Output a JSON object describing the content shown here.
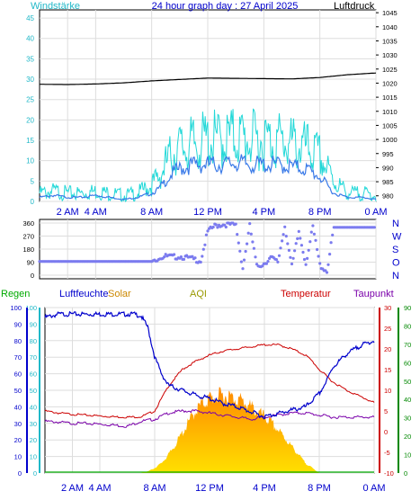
{
  "header": {
    "title": "24 hour graph day : 27 April 2025",
    "left_label": "Windstärke",
    "right_label": "Luftdruck"
  },
  "bottom_header": {
    "regen": "Regen",
    "luftfeuchte": "Luftfeuchte",
    "solar": "Solar",
    "aqi": "AQI",
    "temperatur": "Temperatur",
    "taupunkt": "Taupunkt"
  },
  "x_ticks": [
    "2 AM",
    "4 AM",
    "8 AM",
    "12 PM",
    "4 PM",
    "8 PM",
    "0 AM"
  ],
  "x_tick_hours": [
    2,
    4,
    8,
    12,
    16,
    20,
    24
  ],
  "colors": {
    "wind_gust": "#22d8d8",
    "wind_avg": "#3a7ae8",
    "pressure": "#000000",
    "direction": "#7b7bef",
    "humidity": "#0000cc",
    "solar_top": "#ff8800",
    "solar_bottom": "#ffe000",
    "temperature": "#cc0000",
    "dewpoint": "#7a00aa",
    "regen": "#00aa00",
    "axis_cyan": "#20b8c8",
    "axis_red": "#cc0000",
    "axis_green": "#008800"
  },
  "chart_data": [
    {
      "type": "line",
      "title": "24 hour graph day : 27 April 2025",
      "y_left_label": "Windstärke",
      "y_right_label": "Luftdruck",
      "y_left_ticks": [
        "0",
        "5",
        "10",
        "15",
        "20",
        "25",
        "30",
        "35",
        "40",
        "45"
      ],
      "y_right_ticks": [
        "980",
        "985",
        "990",
        "995",
        "1000",
        "1005",
        "1010",
        "1015",
        "1020",
        "1025",
        "1030",
        "1035",
        "1040",
        "1045"
      ],
      "ylim_left": [
        0,
        47
      ],
      "ylim_right": [
        978,
        1046
      ],
      "xlim": [
        0,
        24
      ],
      "series": [
        {
          "name": "Luftdruck",
          "x": [
            0,
            2,
            4,
            6,
            8,
            10,
            12,
            14,
            16,
            18,
            20,
            22,
            24
          ],
          "values": [
            1019.6,
            1019.5,
            1019.7,
            1020.1,
            1020.8,
            1021.3,
            1021.8,
            1021.7,
            1021.6,
            1021.5,
            1022.0,
            1023.0,
            1023.6
          ]
        },
        {
          "name": "Windstärke",
          "x": [
            0,
            1,
            2,
            3,
            4,
            5,
            6,
            7,
            7.5,
            8,
            8.5,
            9,
            9.5,
            10,
            11,
            12,
            13,
            14,
            15,
            16,
            17,
            18,
            19,
            20,
            20.5,
            21,
            22,
            23,
            24
          ],
          "values": [
            1,
            1.5,
            1,
            1,
            1.5,
            1,
            0.5,
            1,
            1.5,
            2,
            3,
            5,
            7,
            8,
            9,
            9,
            9,
            9.5,
            9,
            9,
            9,
            8.5,
            8,
            6,
            4,
            2,
            1,
            1,
            0.5
          ]
        },
        {
          "name": "gust",
          "x": [
            0,
            1,
            2,
            3,
            4,
            5,
            6,
            7,
            7.5,
            8,
            8.5,
            9,
            9.5,
            10,
            11,
            12,
            13,
            14,
            15,
            16,
            17,
            18,
            19,
            20,
            20.5,
            21,
            22,
            23,
            24
          ],
          "values": [
            2,
            2.5,
            2,
            2,
            2.5,
            2,
            1.5,
            2,
            3,
            4,
            6,
            9,
            12,
            13,
            14,
            15,
            15,
            16,
            15,
            15,
            15,
            14,
            13,
            11,
            8,
            5,
            2,
            2,
            1.5
          ]
        }
      ]
    },
    {
      "type": "scatter",
      "y_right_ticks": [
        "360",
        "270",
        "180",
        "90",
        "0"
      ],
      "y_labels_letters": [
        "N",
        "W",
        "S",
        "O",
        "N"
      ],
      "ylim": [
        0,
        360
      ],
      "xlim": [
        0,
        24
      ],
      "series": [
        {
          "name": "direction",
          "x": [
            0,
            1,
            2,
            3,
            4,
            5,
            6,
            7,
            8,
            8.5,
            9,
            9.5,
            10,
            10.5,
            11,
            11.5,
            12,
            12.5,
            13,
            13.5,
            14,
            14.5,
            15,
            15.5,
            16,
            16.5,
            17,
            17.5,
            18,
            18.5,
            19,
            19.5,
            20,
            20.5,
            21,
            22,
            23,
            24
          ],
          "values": [
            95,
            95,
            95,
            95,
            95,
            95,
            95,
            95,
            95,
            120,
            130,
            125,
            130,
            120,
            110,
            100,
            300,
            340,
            350,
            350,
            345,
            50,
            340,
            60,
            80,
            120,
            90,
            340,
            60,
            300,
            80,
            330,
            70,
            25,
            330,
            330,
            330,
            330
          ]
        }
      ]
    },
    {
      "type": "line",
      "left_axis_ticks": [
        "0",
        "10",
        "20",
        "30",
        "40",
        "50",
        "60",
        "70",
        "80",
        "90",
        "100"
      ],
      "ylim_left": [
        0,
        100
      ],
      "right_temp_ticks": [
        "-10",
        "-5",
        "0",
        "5",
        "10",
        "15",
        "20",
        "25",
        "30"
      ],
      "ylim_temp": [
        -10,
        30
      ],
      "right_solar_ticks": [
        "0",
        "10",
        "20",
        "30",
        "40",
        "50",
        "60",
        "70",
        "80",
        "90"
      ],
      "xlim": [
        0,
        24
      ],
      "series": [
        {
          "name": "Luftfeuchte",
          "x": [
            0,
            1,
            2,
            3,
            4,
            5,
            6,
            6.5,
            7,
            7.5,
            8,
            8.5,
            9,
            10,
            11,
            12,
            13,
            14,
            15,
            16,
            17,
            18,
            19,
            20,
            20.5,
            21,
            22,
            23,
            24
          ],
          "values": [
            94,
            96,
            96,
            96,
            96,
            96,
            96,
            96,
            95,
            88,
            70,
            60,
            53,
            50,
            47,
            45,
            42,
            40,
            37,
            34,
            36,
            38,
            40,
            48,
            55,
            64,
            72,
            77,
            80
          ]
        },
        {
          "name": "Temperatur",
          "x": [
            0,
            1,
            2,
            3,
            4,
            5,
            6,
            7,
            8,
            8.5,
            9,
            9.5,
            10,
            11,
            12,
            13,
            14,
            15,
            16,
            17,
            18,
            19,
            19.5,
            20,
            20.5,
            21,
            22,
            23,
            24
          ],
          "values": [
            5,
            4.5,
            4.2,
            4,
            3.8,
            3.6,
            3.5,
            3.6,
            5,
            8,
            11,
            13,
            15,
            17,
            18.5,
            19.5,
            20,
            20.5,
            21,
            21,
            20,
            18.5,
            17,
            15,
            13.5,
            12,
            10,
            8.5,
            7
          ]
        },
        {
          "name": "Taupunkt",
          "x": [
            0,
            1,
            2,
            3,
            4,
            5,
            6,
            7,
            8,
            9,
            10,
            11,
            12,
            13,
            14,
            15,
            16,
            17,
            18,
            19,
            20,
            21,
            22,
            23,
            24
          ],
          "values": [
            2.5,
            2.3,
            2,
            2,
            1.8,
            1.6,
            1.3,
            2.5,
            3,
            4.5,
            5,
            5,
            4.5,
            4,
            3.5,
            3,
            3.5,
            4,
            4.5,
            4.5,
            4,
            3.5,
            3.5,
            3.5,
            3.5
          ]
        },
        {
          "name": "Solar",
          "x": [
            0,
            6,
            7,
            7.5,
            8,
            8.5,
            9,
            9.5,
            10,
            10.5,
            11,
            11.5,
            12,
            12.5,
            13,
            13.5,
            14,
            14.5,
            15,
            15.5,
            16,
            16.5,
            17,
            17.5,
            18,
            18.5,
            19,
            19.5,
            20,
            24
          ],
          "values": [
            0,
            0,
            0,
            1,
            3,
            6,
            11,
            17,
            24,
            31,
            38,
            42,
            45,
            46,
            47,
            46,
            45,
            43,
            40,
            37,
            34,
            30,
            26,
            21,
            16,
            11,
            6,
            3,
            0,
            0
          ]
        }
      ]
    }
  ]
}
